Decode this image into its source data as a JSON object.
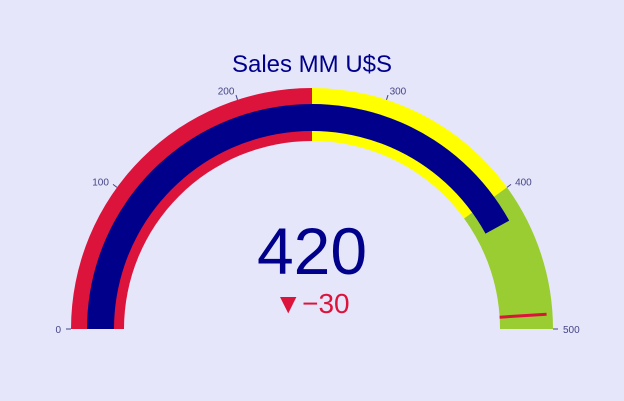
{
  "chart_data": {
    "type": "gauge",
    "title": "Sales MM U$S",
    "value": 420,
    "value_text": "420",
    "delta": -30,
    "delta_symbol": "▼",
    "delta_text": "−30",
    "range": [
      0,
      500
    ],
    "ticks": [
      0,
      100,
      200,
      300,
      400,
      500
    ],
    "tick_labels": [
      "0",
      "100",
      "200",
      "300",
      "400",
      "500"
    ],
    "steps": [
      {
        "range": [
          0,
          250
        ],
        "color": "#dc143c"
      },
      {
        "range": [
          250,
          400
        ],
        "color": "#ffff00"
      },
      {
        "range": [
          400,
          500
        ],
        "color": "#9acd32"
      }
    ],
    "threshold": {
      "value": 490,
      "color": "#dc143c"
    },
    "bar_color": "#00008b",
    "colors": {
      "background": "#e6e6fa",
      "title": "#00008b",
      "value": "#00008b",
      "delta": "#dc143c",
      "ticks": "#444488"
    }
  }
}
